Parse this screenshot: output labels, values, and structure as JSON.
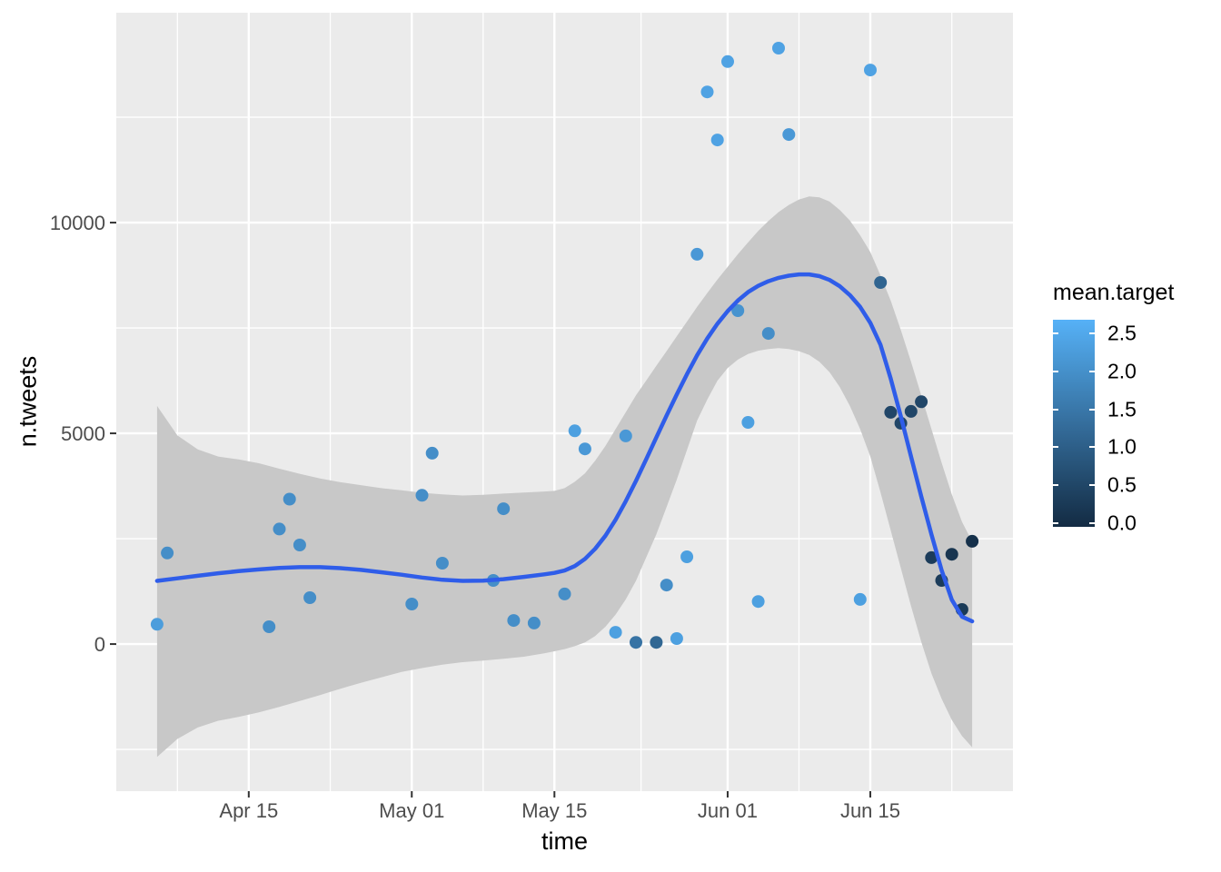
{
  "chart": {
    "xlabel": "time",
    "ylabel": "n.tweets",
    "legend_title": "mean.target",
    "colors": {
      "panel_bg": "#EBEBEB",
      "grid": "#FFFFFF",
      "ribbon": "#C8C8C8",
      "smooth_line": "#2F5DE9",
      "tick_label": "#4D4D4D",
      "tick_mark": "#333333",
      "axis_title": "#000000",
      "scale_low": "#132B43",
      "scale_high": "#56B1F7"
    }
  },
  "chart_data": {
    "type": "scatter",
    "title": "",
    "xlabel": "time",
    "ylabel": "n.tweets",
    "x_unit": "days since Apr 15",
    "x_domain": [
      -13,
      75
    ],
    "y_domain": [
      -3490,
      14980
    ],
    "grid": "on",
    "legend_position": "right",
    "x_major_ticks": [
      {
        "day": 0,
        "label": "Apr 15"
      },
      {
        "day": 16,
        "label": "May 01"
      },
      {
        "day": 30,
        "label": "May 15"
      },
      {
        "day": 47,
        "label": "Jun 01"
      },
      {
        "day": 61,
        "label": "Jun 15"
      }
    ],
    "x_minor_days": [
      -7,
      8,
      23,
      38.5,
      54,
      69
    ],
    "y_major_ticks": [
      {
        "value": 0,
        "label": "0"
      },
      {
        "value": 5000,
        "label": "5000"
      },
      {
        "value": 10000,
        "label": "10000"
      }
    ],
    "y_minor_values": [
      -2500,
      2500,
      7500,
      12500
    ],
    "legend": {
      "title": "mean.target",
      "tick_labels": [
        "2.5",
        "2.0",
        "1.5",
        "1.0",
        "0.5",
        "0.0"
      ],
      "tick_values": [
        2.5,
        2.0,
        1.5,
        1.0,
        0.5,
        0.0
      ],
      "bar_value_top": 2.68,
      "bar_value_bottom": -0.05,
      "target_scale_max": 2.7
    },
    "points_format": [
      "day_since_Apr15",
      "n_tweets",
      "mean_target"
    ],
    "points": [
      [
        -9,
        470,
        2.3
      ],
      [
        -8,
        2160,
        2.0
      ],
      [
        2,
        410,
        2.0
      ],
      [
        3,
        2730,
        2.0
      ],
      [
        4,
        3440,
        2.0
      ],
      [
        5,
        2350,
        2.0
      ],
      [
        6,
        1100,
        2.0
      ],
      [
        16,
        950,
        2.0
      ],
      [
        17,
        3530,
        2.0
      ],
      [
        18,
        4530,
        2.0
      ],
      [
        19,
        1920,
        2.0
      ],
      [
        24,
        1510,
        2.0
      ],
      [
        25,
        3210,
        2.0
      ],
      [
        26,
        560,
        2.0
      ],
      [
        28,
        500,
        2.0
      ],
      [
        31,
        1190,
        2.0
      ],
      [
        32,
        5060,
        2.35
      ],
      [
        33,
        4630,
        2.2
      ],
      [
        36,
        280,
        2.35
      ],
      [
        37,
        4940,
        2.2
      ],
      [
        38,
        40,
        1.45
      ],
      [
        40,
        40,
        1.2
      ],
      [
        41,
        1400,
        2.0
      ],
      [
        42,
        130,
        2.35
      ],
      [
        43,
        2070,
        2.35
      ],
      [
        44,
        9250,
        2.2
      ],
      [
        45,
        13100,
        2.4
      ],
      [
        46,
        11960,
        2.4
      ],
      [
        47,
        13820,
        2.4
      ],
      [
        48,
        7910,
        2.1
      ],
      [
        49,
        5260,
        2.35
      ],
      [
        50,
        1010,
        2.35
      ],
      [
        51,
        7370,
        2.0
      ],
      [
        52,
        14140,
        2.4
      ],
      [
        53,
        12090,
        2.2
      ],
      [
        60,
        1060,
        2.35
      ],
      [
        61,
        13620,
        2.4
      ],
      [
        62,
        8580,
        1.15
      ],
      [
        63,
        5500,
        0.55
      ],
      [
        64,
        5240,
        0.55
      ],
      [
        65,
        5520,
        0.55
      ],
      [
        66,
        5750,
        0.55
      ],
      [
        67,
        2050,
        0.35
      ],
      [
        68,
        1510,
        0.35
      ],
      [
        69,
        2130,
        0.2
      ],
      [
        70,
        820,
        0.3
      ],
      [
        71,
        2440,
        0.1
      ]
    ],
    "smooth_line": [
      [
        -9,
        1500
      ],
      [
        -7,
        1560
      ],
      [
        -5,
        1620
      ],
      [
        -3,
        1680
      ],
      [
        -1,
        1730
      ],
      [
        1,
        1770
      ],
      [
        3,
        1805
      ],
      [
        5,
        1825
      ],
      [
        7,
        1825
      ],
      [
        9,
        1800
      ],
      [
        11,
        1760
      ],
      [
        13,
        1705
      ],
      [
        15,
        1645
      ],
      [
        17,
        1580
      ],
      [
        19,
        1525
      ],
      [
        21,
        1500
      ],
      [
        23,
        1505
      ],
      [
        25,
        1540
      ],
      [
        27,
        1595
      ],
      [
        29,
        1655
      ],
      [
        30,
        1690
      ],
      [
        31,
        1745
      ],
      [
        32,
        1850
      ],
      [
        33,
        2020
      ],
      [
        34,
        2260
      ],
      [
        35,
        2570
      ],
      [
        36,
        2950
      ],
      [
        37,
        3390
      ],
      [
        38,
        3870
      ],
      [
        39,
        4380
      ],
      [
        40,
        4900
      ],
      [
        41,
        5420
      ],
      [
        42,
        5920
      ],
      [
        43,
        6400
      ],
      [
        44,
        6850
      ],
      [
        45,
        7250
      ],
      [
        46,
        7600
      ],
      [
        47,
        7900
      ],
      [
        48,
        8150
      ],
      [
        49,
        8350
      ],
      [
        50,
        8500
      ],
      [
        51,
        8610
      ],
      [
        52,
        8690
      ],
      [
        53,
        8740
      ],
      [
        54,
        8770
      ],
      [
        55,
        8770
      ],
      [
        56,
        8730
      ],
      [
        57,
        8640
      ],
      [
        58,
        8490
      ],
      [
        59,
        8280
      ],
      [
        60,
        8000
      ],
      [
        61,
        7620
      ],
      [
        62,
        7100
      ],
      [
        63,
        6300
      ],
      [
        64,
        5400
      ],
      [
        65,
        4450
      ],
      [
        66,
        3500
      ],
      [
        67,
        2600
      ],
      [
        68,
        1750
      ],
      [
        69,
        1050
      ],
      [
        70,
        650
      ],
      [
        71,
        540
      ]
    ],
    "ribbon_upper": [
      [
        -9,
        5650
      ],
      [
        -7,
        4950
      ],
      [
        -5,
        4620
      ],
      [
        -3,
        4450
      ],
      [
        -1,
        4380
      ],
      [
        1,
        4290
      ],
      [
        3,
        4160
      ],
      [
        5,
        4040
      ],
      [
        7,
        3930
      ],
      [
        9,
        3840
      ],
      [
        11,
        3770
      ],
      [
        13,
        3700
      ],
      [
        15,
        3650
      ],
      [
        17,
        3590
      ],
      [
        19,
        3550
      ],
      [
        21,
        3525
      ],
      [
        23,
        3540
      ],
      [
        25,
        3570
      ],
      [
        27,
        3595
      ],
      [
        29,
        3620
      ],
      [
        30,
        3635
      ],
      [
        31,
        3700
      ],
      [
        32,
        3850
      ],
      [
        33,
        4050
      ],
      [
        34,
        4350
      ],
      [
        35,
        4700
      ],
      [
        36,
        5100
      ],
      [
        37,
        5500
      ],
      [
        38,
        5900
      ],
      [
        39,
        6250
      ],
      [
        40,
        6600
      ],
      [
        41,
        6950
      ],
      [
        42,
        7300
      ],
      [
        43,
        7650
      ],
      [
        44,
        8000
      ],
      [
        45,
        8330
      ],
      [
        46,
        8650
      ],
      [
        47,
        8950
      ],
      [
        48,
        9250
      ],
      [
        49,
        9530
      ],
      [
        50,
        9800
      ],
      [
        51,
        10040
      ],
      [
        52,
        10250
      ],
      [
        53,
        10420
      ],
      [
        54,
        10550
      ],
      [
        55,
        10620
      ],
      [
        56,
        10600
      ],
      [
        57,
        10500
      ],
      [
        58,
        10300
      ],
      [
        59,
        10050
      ],
      [
        60,
        9700
      ],
      [
        61,
        9300
      ],
      [
        62,
        8750
      ],
      [
        63,
        8150
      ],
      [
        64,
        7450
      ],
      [
        65,
        6700
      ],
      [
        66,
        5900
      ],
      [
        67,
        5100
      ],
      [
        68,
        4300
      ],
      [
        69,
        3550
      ],
      [
        70,
        2900
      ],
      [
        71,
        2430
      ]
    ],
    "ribbon_lower": [
      [
        -9,
        -2680
      ],
      [
        -7,
        -2250
      ],
      [
        -5,
        -1980
      ],
      [
        -3,
        -1820
      ],
      [
        -1,
        -1730
      ],
      [
        1,
        -1620
      ],
      [
        3,
        -1490
      ],
      [
        5,
        -1350
      ],
      [
        7,
        -1210
      ],
      [
        9,
        -1060
      ],
      [
        11,
        -920
      ],
      [
        13,
        -790
      ],
      [
        15,
        -660
      ],
      [
        17,
        -570
      ],
      [
        19,
        -490
      ],
      [
        21,
        -430
      ],
      [
        23,
        -390
      ],
      [
        25,
        -350
      ],
      [
        27,
        -300
      ],
      [
        29,
        -220
      ],
      [
        30,
        -170
      ],
      [
        31,
        -120
      ],
      [
        32,
        -50
      ],
      [
        33,
        40
      ],
      [
        34,
        190
      ],
      [
        35,
        410
      ],
      [
        36,
        700
      ],
      [
        37,
        1060
      ],
      [
        38,
        1500
      ],
      [
        39,
        2050
      ],
      [
        40,
        2600
      ],
      [
        41,
        3250
      ],
      [
        42,
        3900
      ],
      [
        43,
        4600
      ],
      [
        44,
        5300
      ],
      [
        45,
        5800
      ],
      [
        46,
        6250
      ],
      [
        47,
        6550
      ],
      [
        48,
        6750
      ],
      [
        49,
        6880
      ],
      [
        50,
        6960
      ],
      [
        51,
        7000
      ],
      [
        52,
        7020
      ],
      [
        53,
        7000
      ],
      [
        54,
        6950
      ],
      [
        55,
        6860
      ],
      [
        56,
        6700
      ],
      [
        57,
        6450
      ],
      [
        58,
        6100
      ],
      [
        59,
        5650
      ],
      [
        60,
        5100
      ],
      [
        61,
        4450
      ],
      [
        62,
        3600
      ],
      [
        63,
        2700
      ],
      [
        64,
        1800
      ],
      [
        65,
        900
      ],
      [
        66,
        50
      ],
      [
        67,
        -700
      ],
      [
        68,
        -1300
      ],
      [
        69,
        -1800
      ],
      [
        70,
        -2180
      ],
      [
        71,
        -2450
      ]
    ]
  }
}
